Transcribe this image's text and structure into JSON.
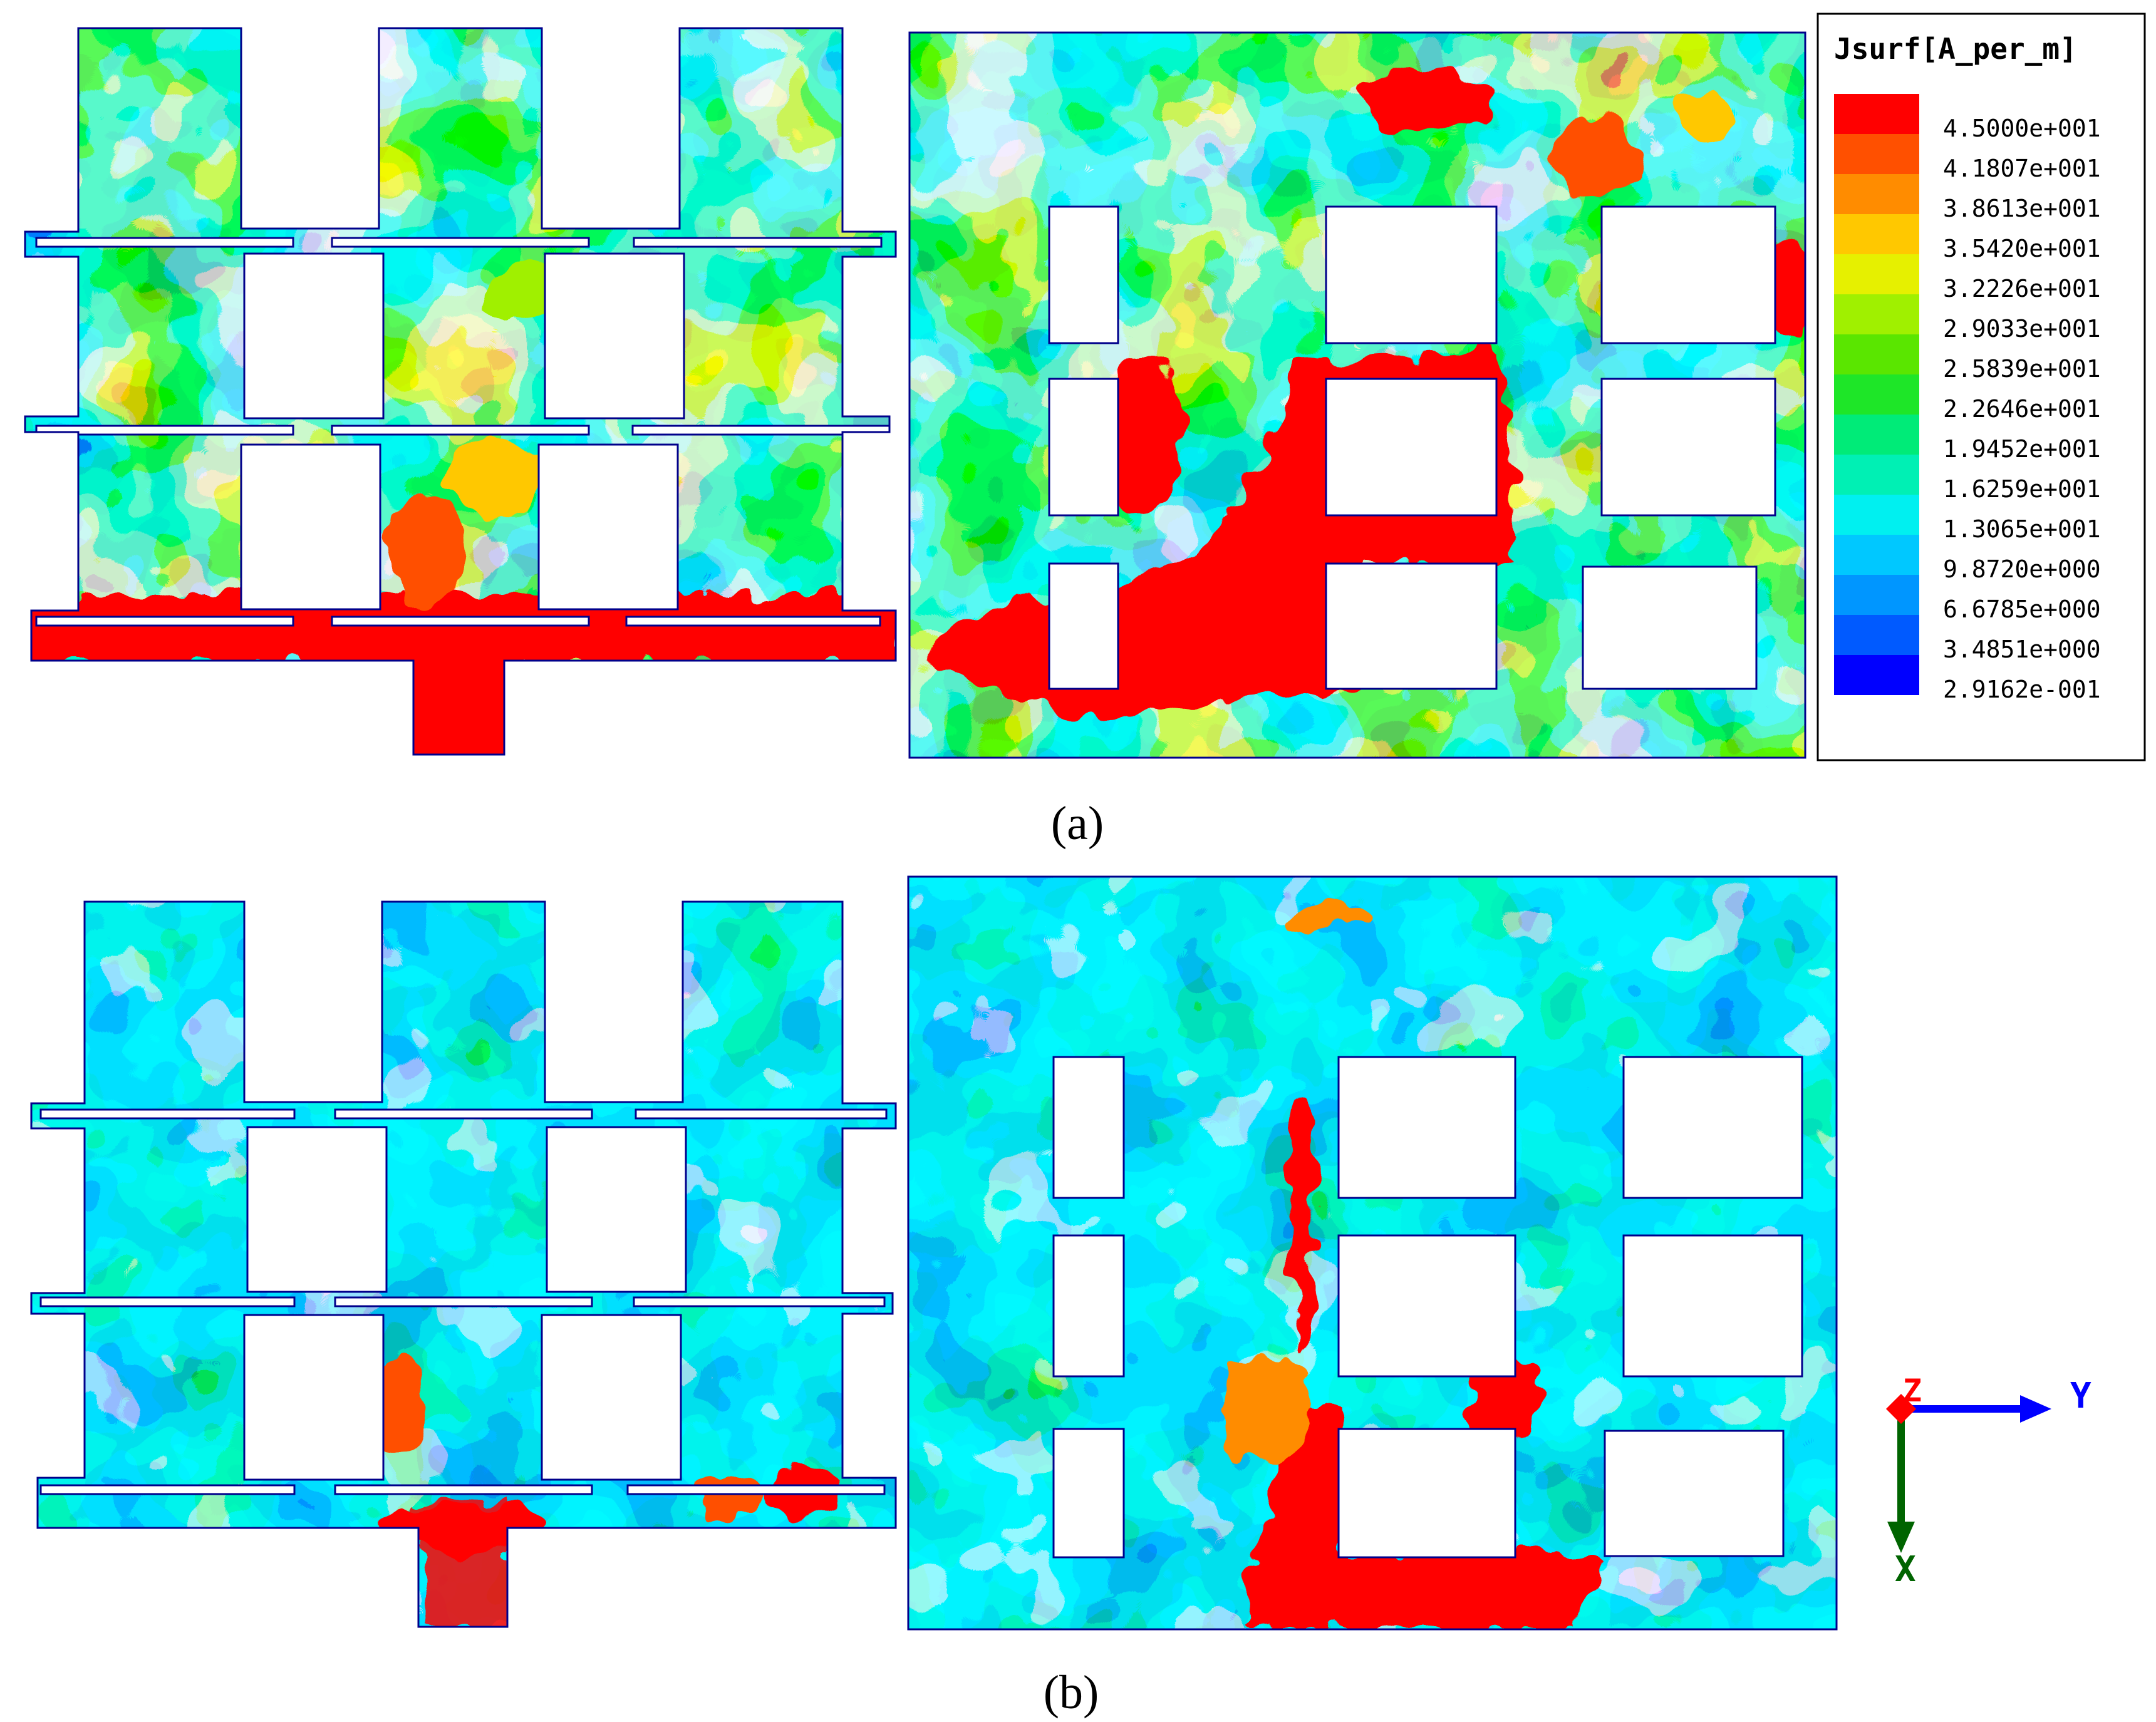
{
  "legend": {
    "title": "Jsurf[A_per_m]",
    "entries": [
      {
        "label": "4.5000e+001",
        "color": "#ff0000"
      },
      {
        "label": "4.1807e+001",
        "color": "#ff5000"
      },
      {
        "label": "3.8613e+001",
        "color": "#ff8c00"
      },
      {
        "label": "3.5420e+001",
        "color": "#ffc800"
      },
      {
        "label": "3.2226e+001",
        "color": "#e6f000"
      },
      {
        "label": "2.9033e+001",
        "color": "#a0f000"
      },
      {
        "label": "2.5839e+001",
        "color": "#5ae600"
      },
      {
        "label": "2.2646e+001",
        "color": "#1ee628"
      },
      {
        "label": "1.9452e+001",
        "color": "#00eb78"
      },
      {
        "label": "1.6259e+001",
        "color": "#00f0b4"
      },
      {
        "label": "1.3065e+001",
        "color": "#00f0f0"
      },
      {
        "label": "9.8720e+000",
        "color": "#00c8ff"
      },
      {
        "label": "6.6785e+000",
        "color": "#0096ff"
      },
      {
        "label": "3.4851e+000",
        "color": "#005aff"
      },
      {
        "label": "2.9162e-001",
        "color": "#0000ff"
      }
    ]
  },
  "captions": {
    "a": "(a)",
    "b": "(b)"
  },
  "axes_triad": {
    "z_label": "Z",
    "y_label": "Y",
    "x_label": "X",
    "colors": {
      "z": "#ff0000",
      "y": "#0000ff",
      "x": "#006400"
    }
  }
}
